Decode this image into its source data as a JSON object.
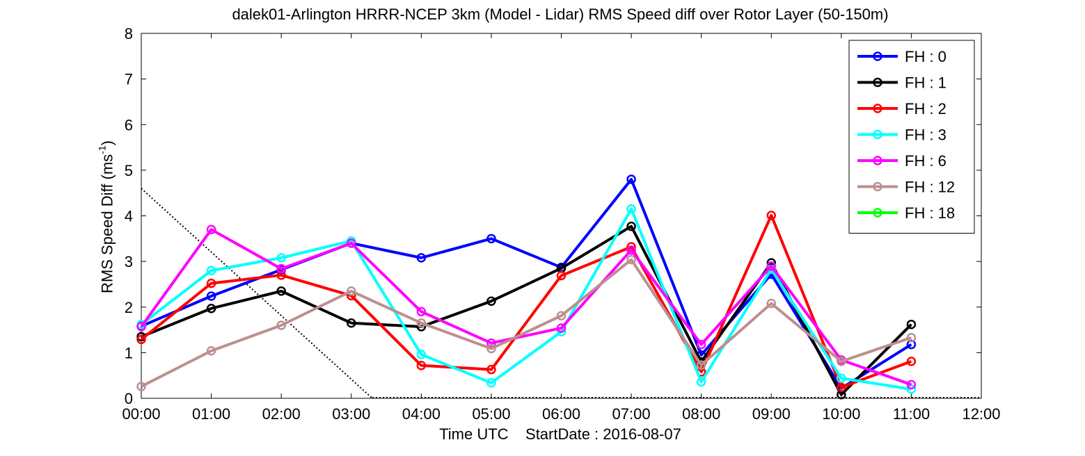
{
  "chart_data": {
    "type": "line",
    "title": "dalek01-Arlington HRRR-NCEP 3km (Model - Lidar) RMS Speed diff over Rotor Layer (50-150m)",
    "xlabel": "Time UTC    StartDate : 2016-08-07",
    "ylabel": {
      "main": "RMS Speed Diff (ms",
      "sup": "-1",
      "close": ")"
    },
    "x_ticks": [
      "00:00",
      "01:00",
      "02:00",
      "03:00",
      "04:00",
      "05:00",
      "06:00",
      "07:00",
      "08:00",
      "09:00",
      "10:00",
      "11:00",
      "12:00"
    ],
    "y_ticks": [
      "0",
      "1",
      "2",
      "3",
      "4",
      "5",
      "6",
      "7",
      "8"
    ],
    "xlim": [
      0,
      12
    ],
    "ylim": [
      0,
      8
    ],
    "legend_placement": "top-right",
    "marker": "open-circle",
    "series": [
      {
        "name": "FH : 0",
        "color": "#0000ff",
        "x": [
          0,
          1,
          2,
          3,
          4,
          5,
          6,
          7,
          8,
          9,
          10,
          11
        ],
        "values": [
          1.58,
          2.24,
          2.82,
          3.4,
          3.08,
          3.5,
          2.87,
          4.8,
          0.95,
          2.72,
          0.22,
          1.18
        ]
      },
      {
        "name": "FH : 1",
        "color": "#000000",
        "x": [
          0,
          1,
          2,
          3,
          4,
          5,
          6,
          7,
          8,
          9,
          10,
          11
        ],
        "values": [
          1.35,
          1.97,
          2.35,
          1.65,
          1.57,
          2.13,
          2.85,
          3.77,
          0.8,
          2.97,
          0.08,
          1.62
        ]
      },
      {
        "name": "FH : 2",
        "color": "#ff0000",
        "x": [
          0,
          1,
          2,
          3,
          4,
          5,
          6,
          7,
          8,
          9,
          10,
          11
        ],
        "values": [
          1.29,
          2.52,
          2.7,
          2.25,
          0.72,
          0.63,
          2.69,
          3.32,
          0.58,
          4.01,
          0.24,
          0.81
        ]
      },
      {
        "name": "FH : 3",
        "color": "#00ffff",
        "x": [
          0,
          1,
          2,
          3,
          4,
          5,
          6,
          7,
          8,
          9,
          10,
          11
        ],
        "values": [
          1.62,
          2.8,
          3.08,
          3.45,
          0.96,
          0.34,
          1.46,
          4.15,
          0.36,
          2.83,
          0.44,
          0.2
        ]
      },
      {
        "name": "FH : 6",
        "color": "#ff00ff",
        "x": [
          0,
          1,
          2,
          3,
          4,
          5,
          6,
          7,
          8,
          9,
          10,
          11
        ],
        "values": [
          1.57,
          3.7,
          2.84,
          3.4,
          1.9,
          1.21,
          1.54,
          3.25,
          1.18,
          2.9,
          0.84,
          0.3
        ]
      },
      {
        "name": "FH : 12",
        "color": "#bc8f8f",
        "x": [
          0,
          1,
          2,
          3,
          4,
          5,
          6,
          7,
          8,
          9,
          10,
          11
        ],
        "values": [
          0.26,
          1.04,
          1.6,
          2.35,
          1.65,
          1.09,
          1.81,
          3.04,
          0.73,
          2.08,
          0.81,
          1.33
        ]
      },
      {
        "name": "FH : 18",
        "color": "#00ff00",
        "x": [],
        "values": []
      }
    ],
    "reference_line": {
      "style": "dotted",
      "color": "#000000",
      "x": [
        0,
        3.3
      ],
      "values": [
        4.6,
        0
      ]
    }
  }
}
